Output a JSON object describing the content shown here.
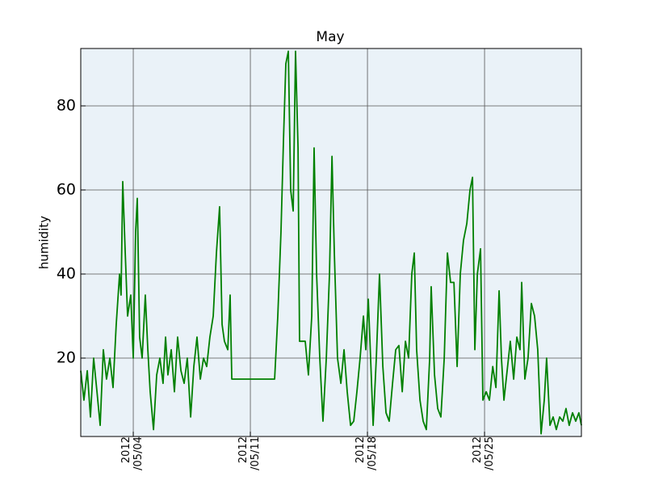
{
  "chart_data": {
    "type": "line",
    "title": "May",
    "y_label": "humidity",
    "x": [
      0.86,
      1.05,
      1.25,
      1.44,
      1.63,
      1.83,
      2.02,
      2.21,
      2.4,
      2.6,
      2.79,
      2.98,
      3.18,
      3.27,
      3.37,
      3.52,
      3.66,
      3.85,
      4.0,
      4.14,
      4.24,
      4.38,
      4.53,
      4.72,
      4.87,
      5.01,
      5.21,
      5.4,
      5.59,
      5.78,
      5.93,
      6.07,
      6.27,
      6.46,
      6.65,
      6.85,
      7.04,
      7.23,
      7.43,
      7.62,
      7.81,
      8.01,
      8.2,
      8.39,
      8.58,
      8.78,
      8.97,
      9.16,
      9.31,
      9.45,
      9.65,
      9.79,
      9.89,
      12.45,
      12.64,
      12.83,
      12.98,
      13.12,
      13.27,
      13.41,
      13.56,
      13.7,
      13.85,
      13.94,
      14.28,
      14.47,
      14.67,
      14.81,
      14.96,
      15.15,
      15.34,
      15.54,
      15.73,
      15.88,
      16.02,
      16.21,
      16.41,
      16.6,
      16.79,
      16.99,
      17.18,
      17.37,
      17.56,
      17.76,
      17.9,
      18.05,
      18.14,
      18.34,
      18.53,
      18.72,
      18.92,
      19.11,
      19.3,
      19.5,
      19.69,
      19.88,
      20.08,
      20.27,
      20.46,
      20.65,
      20.8,
      20.94,
      21.14,
      21.33,
      21.52,
      21.72,
      21.81,
      22.01,
      22.2,
      22.39,
      22.59,
      22.78,
      22.97,
      23.17,
      23.36,
      23.55,
      23.74,
      23.94,
      24.13,
      24.28,
      24.42,
      24.57,
      24.76,
      24.9,
      25.1,
      25.29,
      25.49,
      25.68,
      25.87,
      26.01,
      26.16,
      26.35,
      26.54,
      26.74,
      26.93,
      27.12,
      27.22,
      27.41,
      27.6,
      27.8,
      27.99,
      28.18,
      28.38,
      28.57,
      28.71,
      28.91,
      29.1,
      29.29,
      29.49,
      29.68,
      29.87,
      30.06,
      30.26,
      30.45,
      30.64,
      30.79
    ],
    "series": [
      {
        "name": "humidity",
        "color": "#008000",
        "values": [
          17,
          10,
          17,
          6,
          20,
          12,
          4,
          22,
          15,
          20,
          13,
          28,
          40,
          35,
          62,
          45,
          30,
          35,
          20,
          50,
          58,
          25,
          20,
          35,
          22,
          12,
          3,
          16,
          20,
          14,
          25,
          16,
          22,
          12,
          25,
          17,
          14,
          20,
          6,
          18,
          25,
          15,
          20,
          18,
          25,
          30,
          45,
          56,
          28,
          24,
          22,
          35,
          15,
          15,
          30,
          50,
          72,
          90,
          93,
          60,
          55,
          93,
          70,
          24,
          24,
          16,
          30,
          70,
          40,
          20,
          5,
          20,
          40,
          68,
          45,
          20,
          14,
          22,
          12,
          4,
          5,
          12,
          20,
          30,
          22,
          34,
          25,
          4,
          20,
          40,
          18,
          7,
          5,
          14,
          22,
          23,
          12,
          24,
          20,
          40,
          45,
          22,
          10,
          5,
          3,
          20,
          37,
          16,
          8,
          6,
          20,
          45,
          38,
          38,
          18,
          40,
          48,
          52,
          60,
          63,
          22,
          40,
          46,
          10,
          12,
          10,
          18,
          13,
          36,
          20,
          10,
          17,
          24,
          15,
          25,
          22,
          38,
          15,
          20,
          33,
          30,
          22,
          2,
          10,
          20,
          4,
          6,
          3,
          6,
          5,
          8,
          4,
          7,
          5,
          7,
          4
        ]
      }
    ],
    "xlim": [
      0.86,
      30.79
    ],
    "xticks": [
      {
        "value": 4,
        "label": "2012\n/05/04"
      },
      {
        "value": 11,
        "label": "2012\n/05/11"
      },
      {
        "value": 18,
        "label": "2012\n/05/18"
      },
      {
        "value": 25,
        "label": "2012\n/05/25"
      }
    ],
    "ylim": [
      1.35,
      93.65
    ],
    "yticks": [
      20,
      40,
      60,
      80
    ],
    "grid": true,
    "background": "#eaf2f8"
  }
}
